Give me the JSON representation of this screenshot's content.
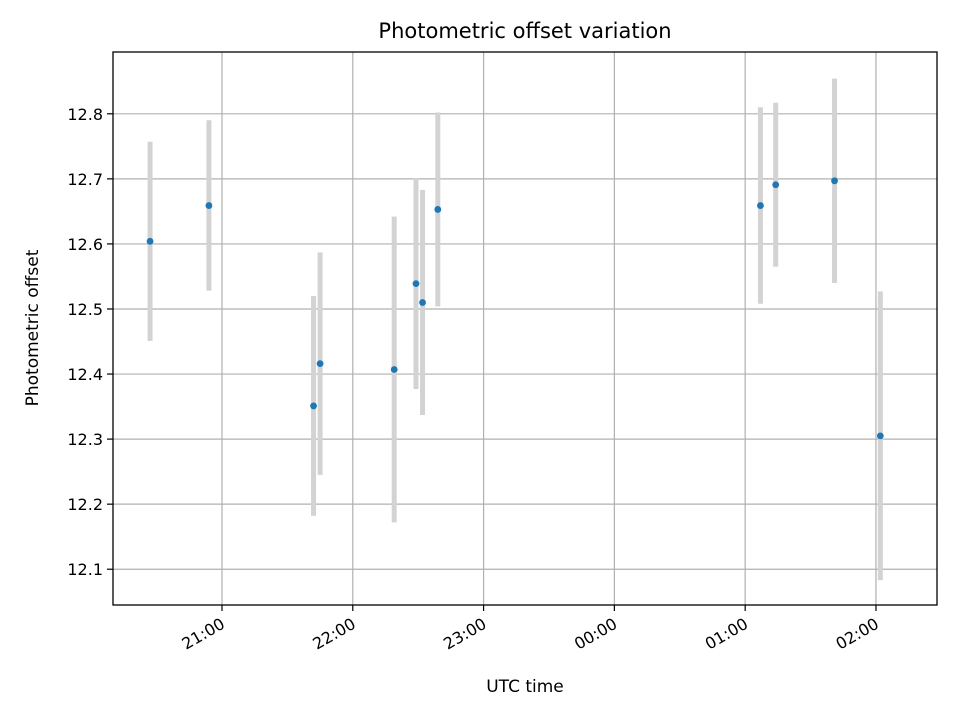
{
  "chart_data": {
    "type": "scatter",
    "title": "Photometric offset variation",
    "xlabel": "UTC time",
    "ylabel": "Photometric offset",
    "x_axis_type": "time",
    "x_ticks": [
      "21:00",
      "22:00",
      "23:00",
      "00:00",
      "01:00",
      "02:00"
    ],
    "xlim": [
      "20:10",
      "02:28"
    ],
    "ylim": [
      12.045,
      12.895
    ],
    "y_ticks": [
      12.1,
      12.2,
      12.3,
      12.4,
      12.5,
      12.6,
      12.7,
      12.8
    ],
    "grid": true,
    "point_color": "#1f77b4",
    "errorbar_color": "#d3d3d3",
    "points": [
      {
        "x": "20:27",
        "y": 12.604,
        "err": 0.153
      },
      {
        "x": "20:54",
        "y": 12.659,
        "err": 0.131
      },
      {
        "x": "21:42",
        "y": 12.351,
        "err": 0.169
      },
      {
        "x": "21:45",
        "y": 12.416,
        "err": 0.171
      },
      {
        "x": "22:19",
        "y": 12.407,
        "err": 0.235
      },
      {
        "x": "22:29",
        "y": 12.539,
        "err": 0.162
      },
      {
        "x": "22:32",
        "y": 12.51,
        "err": 0.173
      },
      {
        "x": "22:39",
        "y": 12.653,
        "err": 0.149
      },
      {
        "x": "01:07",
        "y": 12.659,
        "err": 0.151
      },
      {
        "x": "01:14",
        "y": 12.691,
        "err": 0.126
      },
      {
        "x": "01:41",
        "y": 12.697,
        "err": 0.157
      },
      {
        "x": "02:02",
        "y": 12.305,
        "err": 0.222
      }
    ]
  }
}
